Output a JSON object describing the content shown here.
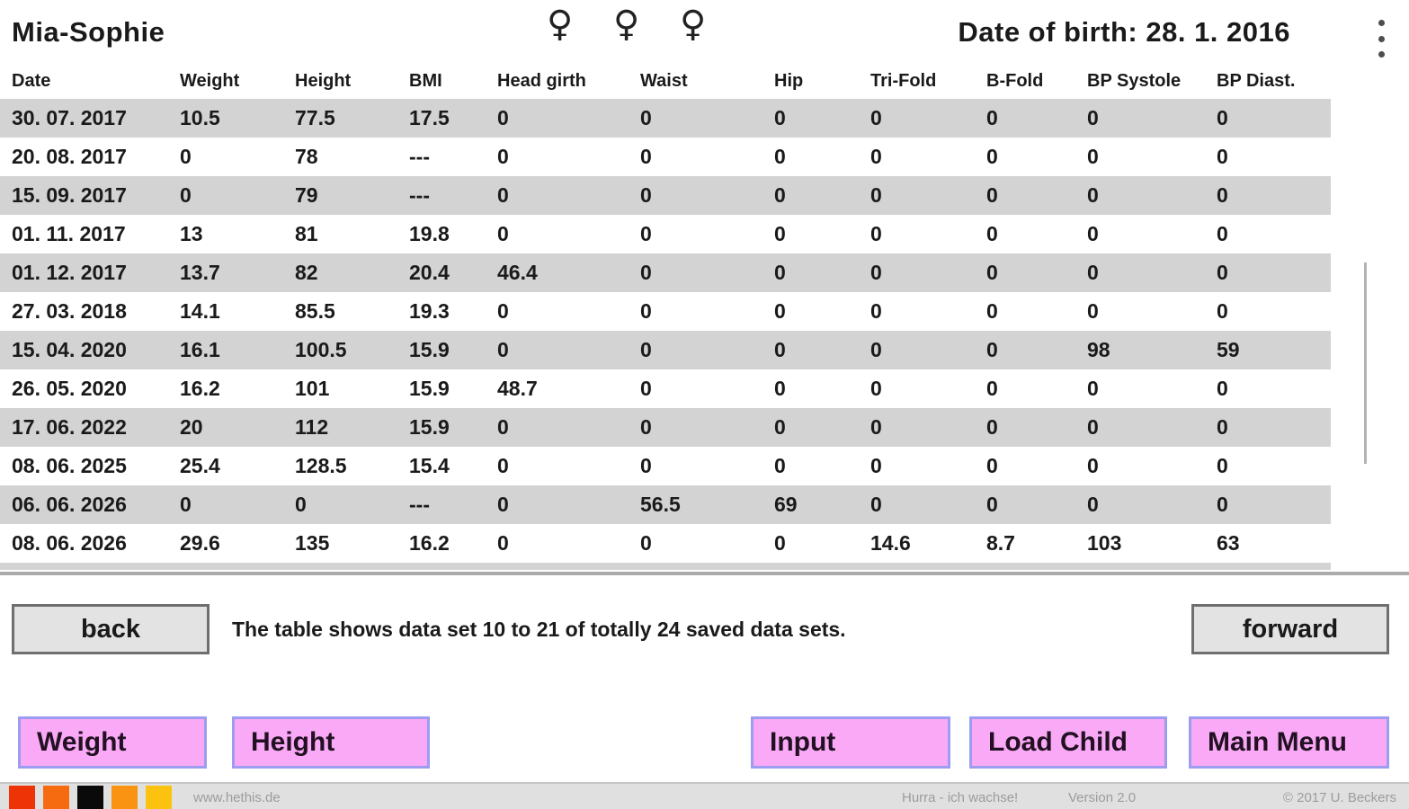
{
  "header": {
    "child_name": "Mia-Sophie",
    "gender_symbols": "♀ ♀ ♀",
    "date_of_birth": "Date of birth: 28. 1. 2016"
  },
  "table": {
    "columns": [
      "Date",
      "Weight",
      "Height",
      "BMI",
      "Head girth",
      "Waist",
      "Hip",
      "Tri-Fold",
      "B-Fold",
      "BP Systole",
      "BP Diast."
    ],
    "rows": [
      [
        "30. 07. 2017",
        "10.5",
        "77.5",
        "17.5",
        "0",
        "0",
        "0",
        "0",
        "0",
        "0",
        "0"
      ],
      [
        "20. 08. 2017",
        "0",
        "78",
        "---",
        "0",
        "0",
        "0",
        "0",
        "0",
        "0",
        "0"
      ],
      [
        "15. 09. 2017",
        "0",
        "79",
        "---",
        "0",
        "0",
        "0",
        "0",
        "0",
        "0",
        "0"
      ],
      [
        "01. 11. 2017",
        "13",
        "81",
        "19.8",
        "0",
        "0",
        "0",
        "0",
        "0",
        "0",
        "0"
      ],
      [
        "01. 12. 2017",
        "13.7",
        "82",
        "20.4",
        "46.4",
        "0",
        "0",
        "0",
        "0",
        "0",
        "0"
      ],
      [
        "27. 03. 2018",
        "14.1",
        "85.5",
        "19.3",
        "0",
        "0",
        "0",
        "0",
        "0",
        "0",
        "0"
      ],
      [
        "15. 04. 2020",
        "16.1",
        "100.5",
        "15.9",
        "0",
        "0",
        "0",
        "0",
        "0",
        "98",
        "59"
      ],
      [
        "26. 05. 2020",
        "16.2",
        "101",
        "15.9",
        "48.7",
        "0",
        "0",
        "0",
        "0",
        "0",
        "0"
      ],
      [
        "17. 06. 2022",
        "20",
        "112",
        "15.9",
        "0",
        "0",
        "0",
        "0",
        "0",
        "0",
        "0"
      ],
      [
        "08. 06. 2025",
        "25.4",
        "128.5",
        "15.4",
        "0",
        "0",
        "0",
        "0",
        "0",
        "0",
        "0"
      ],
      [
        "06. 06. 2026",
        "0",
        "0",
        "---",
        "0",
        "56.5",
        "69",
        "0",
        "0",
        "0",
        "0"
      ],
      [
        "08. 06. 2026",
        "29.6",
        "135",
        "16.2",
        "0",
        "0",
        "0",
        "14.6",
        "8.7",
        "103",
        "63"
      ]
    ],
    "stripe_color": "#d3d3d3"
  },
  "pagination": {
    "back_label": "back",
    "status_text": "The table shows data set 10 to 21 of totally 24 saved data sets.",
    "forward_label": "forward"
  },
  "actions": {
    "weight_label": "Weight",
    "height_label": "Height",
    "input_label": "Input",
    "load_child_label": "Load Child",
    "main_menu_label": "Main Menu",
    "button_color": "#f9a9f5",
    "button_border_color": "#9c9cf0"
  },
  "footer": {
    "logo_colors": [
      "#ee3407",
      "#f76b10",
      "#0a0a0a",
      "#fa9311",
      "#fbc310"
    ],
    "website": "www.hethis.de",
    "app_name": "Hurra - ich wachse!",
    "version": "Version 2.0",
    "copyright": "© 2017 U. Beckers"
  }
}
